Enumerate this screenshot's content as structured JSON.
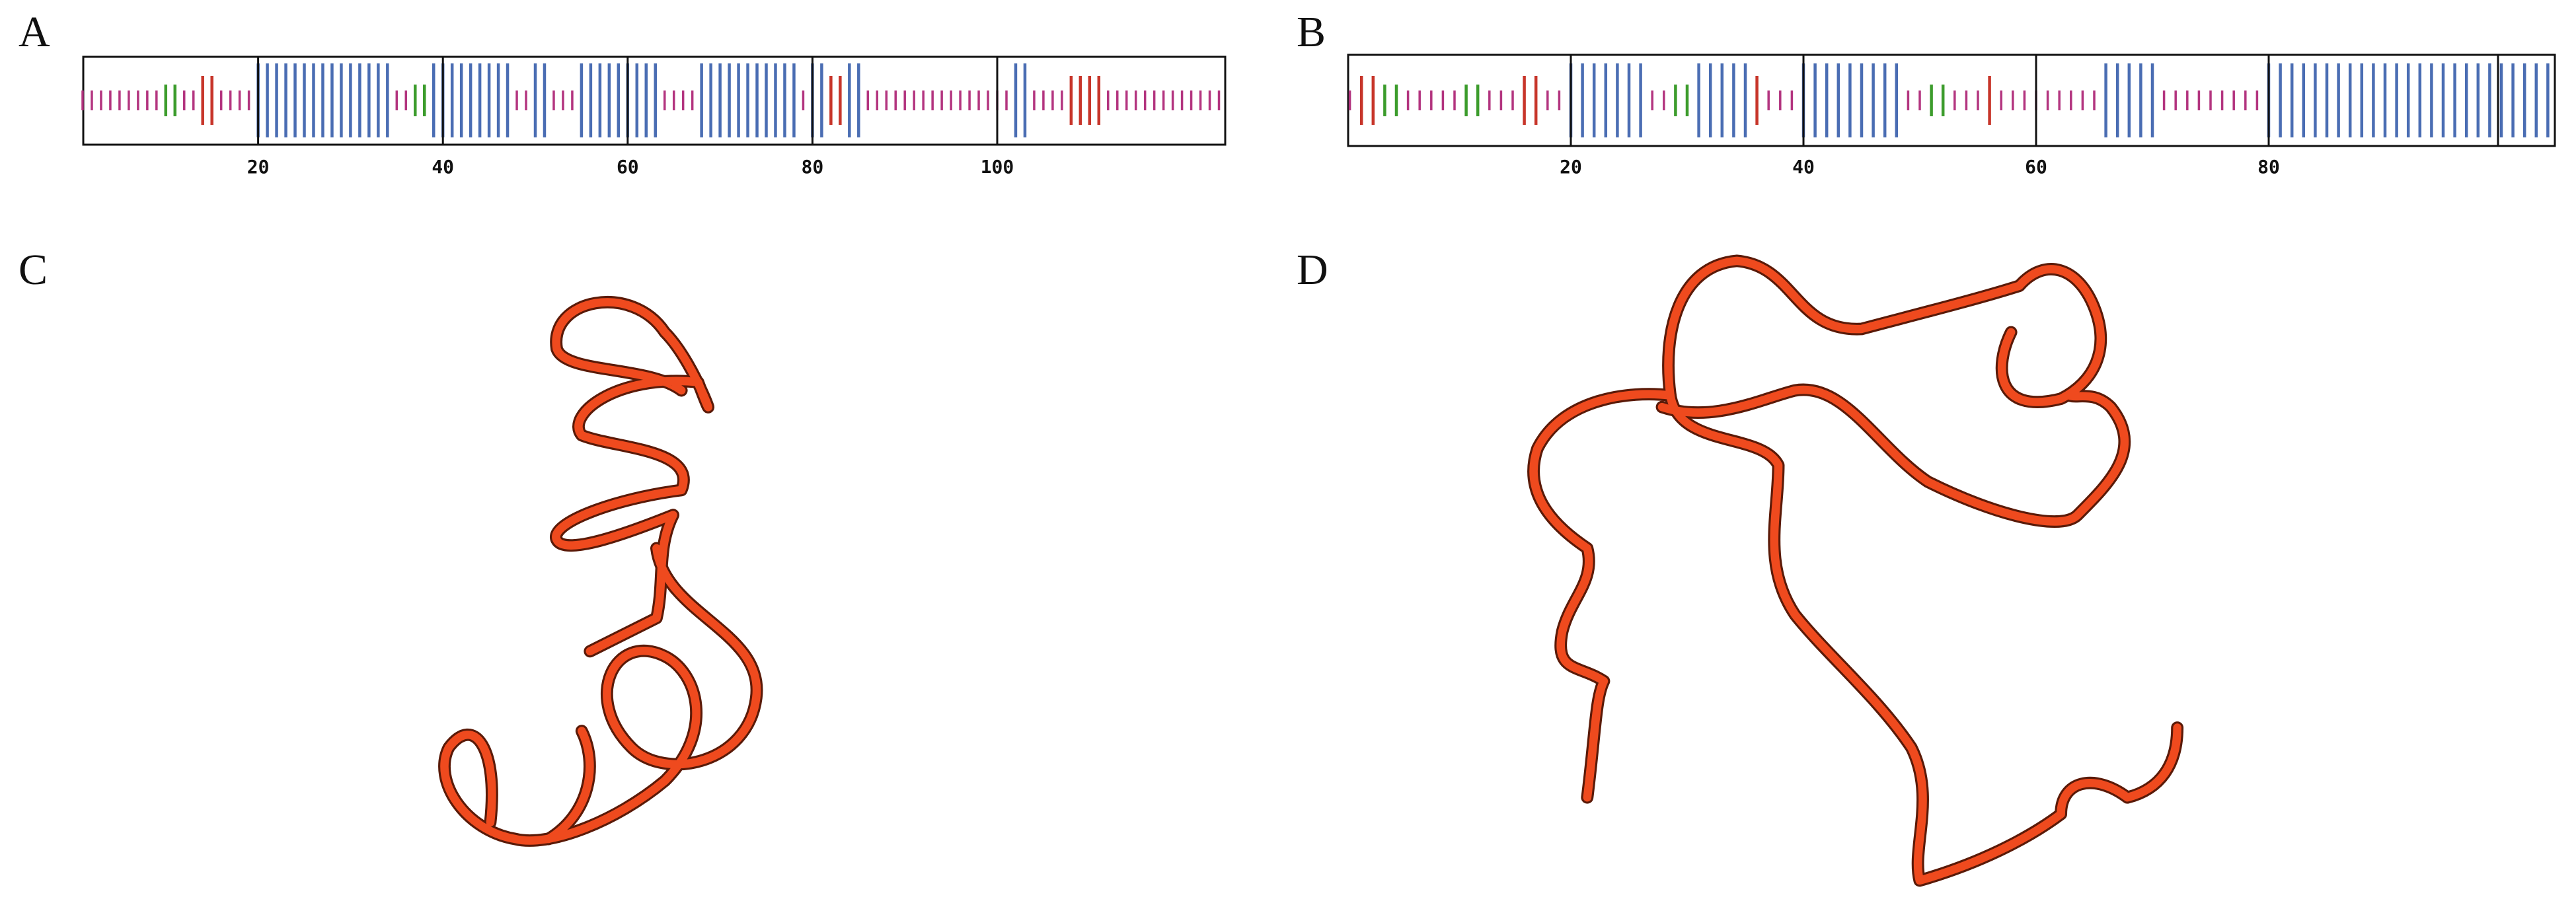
{
  "panels": [
    {
      "label": "A",
      "ticks": [
        20,
        40,
        60,
        80,
        100
      ]
    },
    {
      "label": "B",
      "ticks": [
        20,
        40,
        60,
        80
      ]
    },
    {
      "label": "C"
    },
    {
      "label": "D"
    }
  ]
}
